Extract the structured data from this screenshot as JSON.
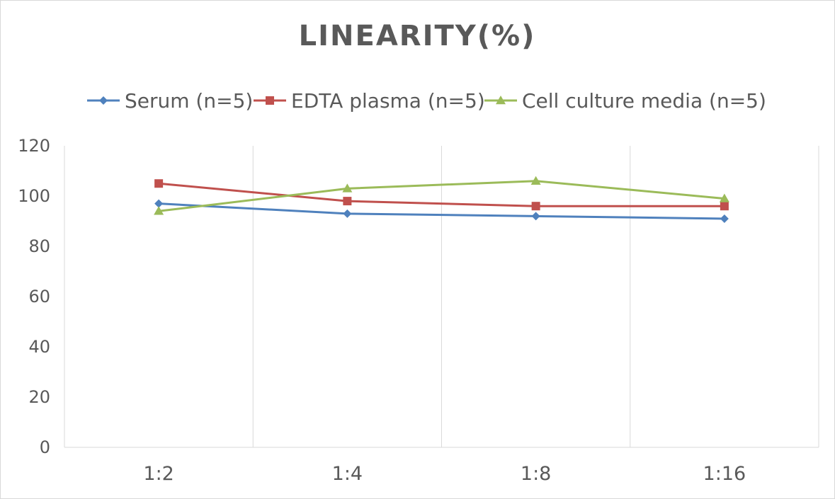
{
  "chart_data": {
    "type": "line",
    "title": "LINEARITY(%)",
    "categories": [
      "1:2",
      "1:4",
      "1:8",
      "1:16"
    ],
    "series": [
      {
        "name": "Serum (n=5)",
        "values": [
          97,
          93,
          92,
          91
        ],
        "color": "#4f81bd",
        "marker": "diamond"
      },
      {
        "name": "EDTA plasma (n=5)",
        "values": [
          105,
          98,
          96,
          96
        ],
        "color": "#c0504d",
        "marker": "square"
      },
      {
        "name": "Cell culture media (n=5)",
        "values": [
          94,
          103,
          106,
          99
        ],
        "color": "#9bbb59",
        "marker": "triangle"
      }
    ],
    "ylim": [
      0,
      120
    ],
    "yticks": [
      "0",
      "20",
      "40",
      "60",
      "80",
      "100",
      "120"
    ],
    "xlabel": "",
    "ylabel": "",
    "grid": "vertical",
    "legend": "top"
  }
}
